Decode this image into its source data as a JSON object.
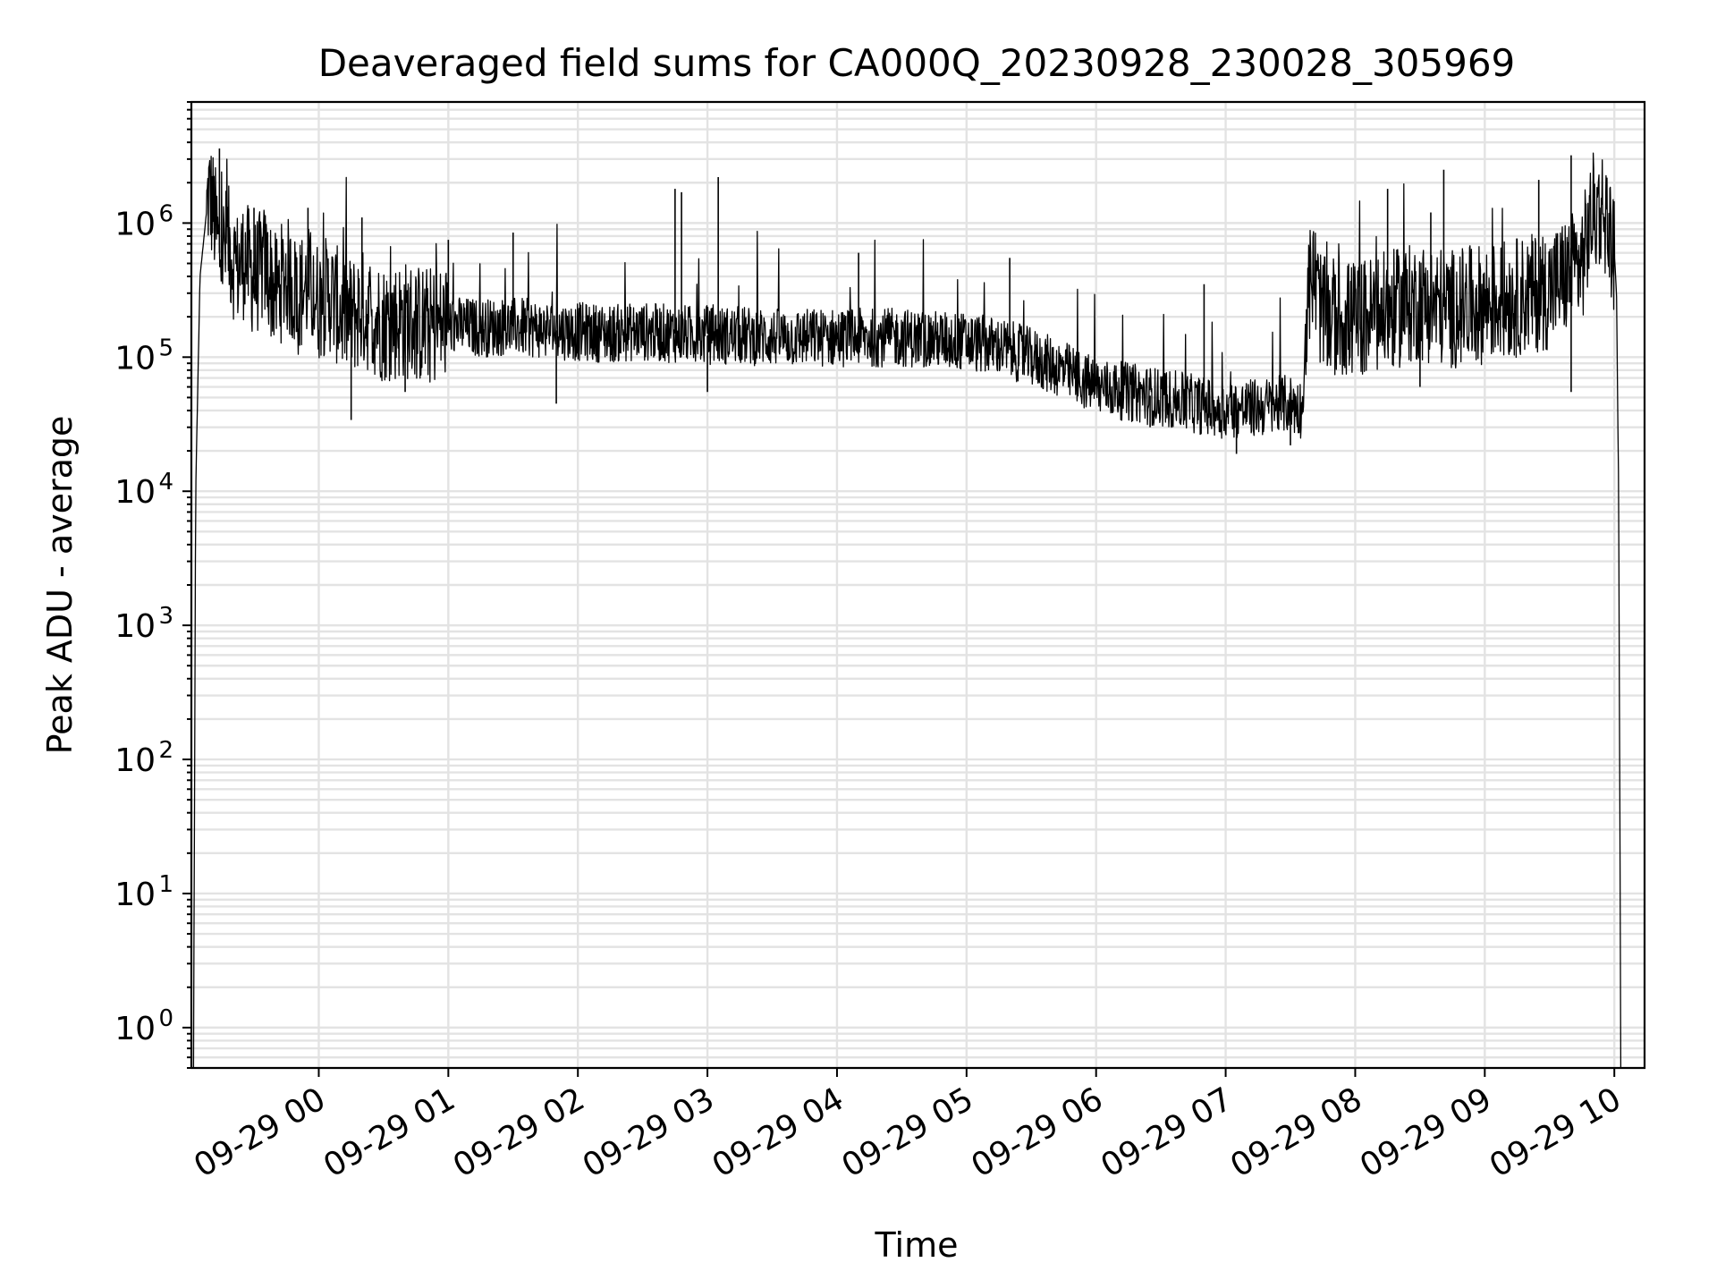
{
  "chart_data": {
    "type": "line",
    "title": "Deaveraged field sums for CA000Q_20230928_230028_305969",
    "xlabel": "Time",
    "ylabel": "Peak ADU - average",
    "yscale": "log",
    "ylim": [
      0.5,
      8000000
    ],
    "xlim": [
      "2023-09-28T23:01",
      "2023-09-29T10:14"
    ],
    "grid": "major and minor",
    "x_ticks": [
      {
        "t": "2023-09-29T00:00",
        "label": "09-29 00"
      },
      {
        "t": "2023-09-29T01:00",
        "label": "09-29 01"
      },
      {
        "t": "2023-09-29T02:00",
        "label": "09-29 02"
      },
      {
        "t": "2023-09-29T03:00",
        "label": "09-29 03"
      },
      {
        "t": "2023-09-29T04:00",
        "label": "09-29 04"
      },
      {
        "t": "2023-09-29T05:00",
        "label": "09-29 05"
      },
      {
        "t": "2023-09-29T06:00",
        "label": "09-29 06"
      },
      {
        "t": "2023-09-29T07:00",
        "label": "09-29 07"
      },
      {
        "t": "2023-09-29T08:00",
        "label": "09-29 08"
      },
      {
        "t": "2023-09-29T09:00",
        "label": "09-29 09"
      },
      {
        "t": "2023-09-29T10:00",
        "label": "09-29 10"
      }
    ],
    "y_ticks": [
      {
        "value": 1,
        "base": "10",
        "exp": "0"
      },
      {
        "value": 10,
        "base": "10",
        "exp": "1"
      },
      {
        "value": 100,
        "base": "10",
        "exp": "2"
      },
      {
        "value": 1000,
        "base": "10",
        "exp": "3"
      },
      {
        "value": 10000,
        "base": "10",
        "exp": "4"
      },
      {
        "value": 100000,
        "base": "10",
        "exp": "5"
      },
      {
        "value": 1000000,
        "base": "10",
        "exp": "6"
      }
    ],
    "series": [
      {
        "color": "#000000",
        "points": [
          [
            "2023-09-28T23:02",
            0.5
          ],
          [
            "2023-09-28T23:03",
            10000
          ],
          [
            "2023-09-28T23:05",
            400000
          ],
          [
            "2023-09-28T23:08",
            1200000
          ],
          [
            "2023-09-28T23:09",
            1700000
          ],
          [
            "2023-09-28T23:11",
            1300000
          ],
          [
            "2023-09-28T23:14",
            600000
          ],
          [
            "2023-09-28T23:18",
            700000
          ],
          [
            "2023-09-28T23:22",
            450000
          ],
          [
            "2023-09-28T23:26",
            550000
          ],
          [
            "2023-09-28T23:30",
            380000
          ],
          [
            "2023-09-28T23:35",
            500000
          ],
          [
            "2023-09-28T23:40",
            300000
          ],
          [
            "2023-09-28T23:45",
            420000
          ],
          [
            "2023-09-28T23:50",
            280000
          ],
          [
            "2023-09-28T23:55",
            350000
          ],
          [
            "2023-09-29T00:00",
            260000
          ],
          [
            "2023-09-29T00:05",
            300000
          ],
          [
            "2023-09-29T00:10",
            220000
          ],
          [
            "2023-09-29T00:15",
            200000
          ],
          [
            "2023-09-29T00:20",
            230000
          ],
          [
            "2023-09-29T00:30",
            180000
          ],
          [
            "2023-09-29T00:40",
            190000
          ],
          [
            "2023-09-29T00:50",
            170000
          ],
          [
            "2023-09-29T01:00",
            175000
          ],
          [
            "2023-09-29T01:15",
            165000
          ],
          [
            "2023-09-29T01:30",
            170000
          ],
          [
            "2023-09-29T01:45",
            160000
          ],
          [
            "2023-09-29T02:00",
            155000
          ],
          [
            "2023-09-29T02:15",
            150000
          ],
          [
            "2023-09-29T02:30",
            155000
          ],
          [
            "2023-09-29T02:45",
            150000
          ],
          [
            "2023-09-29T03:00",
            145000
          ],
          [
            "2023-09-29T03:15",
            145000
          ],
          [
            "2023-09-29T03:30",
            140000
          ],
          [
            "2023-09-29T03:45",
            140000
          ],
          [
            "2023-09-29T04:00",
            140000
          ],
          [
            "2023-09-29T04:15",
            140000
          ],
          [
            "2023-09-29T04:30",
            140000
          ],
          [
            "2023-09-29T04:45",
            135000
          ],
          [
            "2023-09-29T05:00",
            130000
          ],
          [
            "2023-09-29T05:15",
            120000
          ],
          [
            "2023-09-29T05:30",
            100000
          ],
          [
            "2023-09-29T05:45",
            80000
          ],
          [
            "2023-09-29T06:00",
            60000
          ],
          [
            "2023-09-29T06:15",
            55000
          ],
          [
            "2023-09-29T06:30",
            50000
          ],
          [
            "2023-09-29T06:45",
            45000
          ],
          [
            "2023-09-29T07:00",
            40000
          ],
          [
            "2023-09-29T07:15",
            42000
          ],
          [
            "2023-09-29T07:30",
            45000
          ],
          [
            "2023-09-29T07:36",
            40000
          ],
          [
            "2023-09-29T07:37",
            200000
          ],
          [
            "2023-09-29T07:40",
            450000
          ],
          [
            "2023-09-29T07:45",
            200000
          ],
          [
            "2023-09-29T08:00",
            190000
          ],
          [
            "2023-09-29T08:15",
            220000
          ],
          [
            "2023-09-29T08:30",
            260000
          ],
          [
            "2023-09-29T08:45",
            230000
          ],
          [
            "2023-09-29T09:00",
            250000
          ],
          [
            "2023-09-29T09:15",
            280000
          ],
          [
            "2023-09-29T09:30",
            320000
          ],
          [
            "2023-09-29T09:45",
            500000
          ],
          [
            "2023-09-29T09:50",
            1200000
          ],
          [
            "2023-09-29T09:55",
            1300000
          ],
          [
            "2023-09-29T10:00",
            600000
          ],
          [
            "2023-09-29T10:01",
            300000
          ],
          [
            "2023-09-29T10:02",
            10000
          ],
          [
            "2023-09-29T10:03",
            0.5
          ]
        ],
        "spikes": [
          [
            "2023-09-28T23:14",
            3600000
          ],
          [
            "2023-09-28T23:30",
            1300000
          ],
          [
            "2023-09-28T23:55",
            1300000
          ],
          [
            "2023-09-29T00:20",
            1100000
          ],
          [
            "2023-09-29T01:00",
            750000
          ],
          [
            "2023-09-29T01:30",
            850000
          ],
          [
            "2023-09-29T02:45",
            1800000
          ],
          [
            "2023-09-29T02:48",
            1700000
          ],
          [
            "2023-09-29T03:05",
            2200000
          ],
          [
            "2023-09-29T04:10",
            600000
          ],
          [
            "2023-09-29T05:20",
            550000
          ],
          [
            "2023-09-29T06:50",
            350000
          ],
          [
            "2023-09-29T08:15",
            1800000
          ],
          [
            "2023-09-29T08:35",
            1200000
          ],
          [
            "2023-09-29T08:41",
            2500000
          ],
          [
            "2023-09-29T09:25",
            2100000
          ],
          [
            "2023-09-29T09:40",
            3200000
          ]
        ],
        "dips": [
          [
            "2023-09-29T00:15",
            34000
          ],
          [
            "2023-09-29T00:40",
            55000
          ],
          [
            "2023-09-29T01:50",
            45000
          ],
          [
            "2023-09-29T03:00",
            55000
          ],
          [
            "2023-09-29T06:25",
            30000
          ],
          [
            "2023-09-29T07:05",
            19000
          ],
          [
            "2023-09-29T07:30",
            22000
          ],
          [
            "2023-09-29T08:30",
            60000
          ],
          [
            "2023-09-29T09:40",
            55000
          ]
        ]
      }
    ]
  }
}
